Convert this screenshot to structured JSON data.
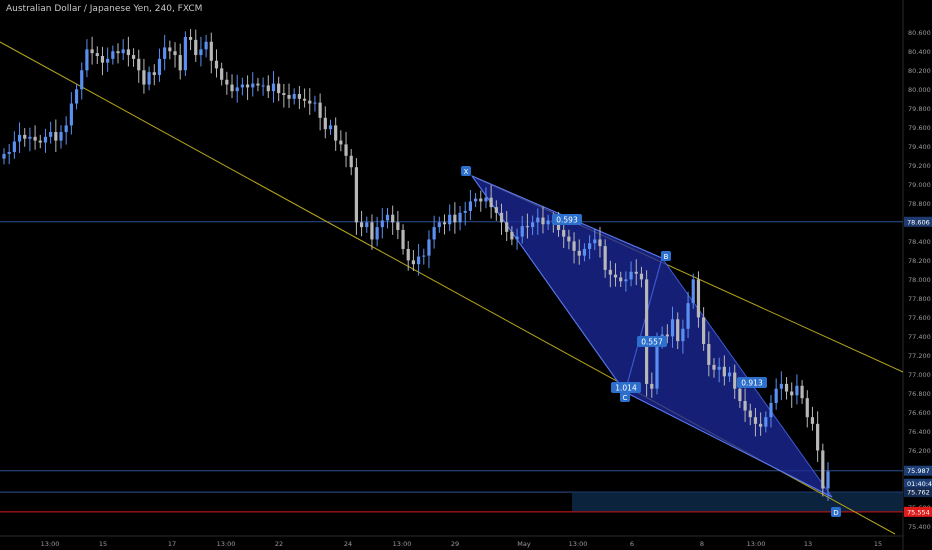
{
  "chart_data": {
    "type": "candlestick",
    "title": "Australian Dollar / Japanese Yen, 240, FXCM",
    "y_ticks": [
      80.6,
      80.4,
      80.2,
      80.0,
      79.8,
      79.6,
      79.4,
      79.2,
      79.0,
      78.8,
      78.4,
      78.2,
      78.0,
      77.8,
      77.6,
      77.4,
      77.2,
      77.0,
      76.8,
      76.6,
      76.4,
      76.2,
      75.6,
      75.4
    ],
    "x_ticks": [
      "13:00",
      "15",
      "17",
      "13:00",
      "22",
      "24",
      "13:00",
      "29",
      "May",
      "13:00",
      "6",
      "8",
      "13:00",
      "13",
      "15"
    ],
    "ylim": [
      75.3,
      80.75
    ],
    "grid": false,
    "price_labels": [
      {
        "value": 78.606,
        "text": "78.606",
        "color": "#1f3a6e"
      },
      {
        "value": 75.987,
        "text": "75.987",
        "color": "#1e3f75"
      },
      {
        "value": 75.85,
        "text": "01:40:42",
        "color": "#1e3f75"
      },
      {
        "value": 75.762,
        "text": "75.762",
        "color": "#162b52"
      },
      {
        "value": 75.554,
        "text": "75.554",
        "color": "#e01b1b"
      }
    ],
    "horizontal_lines": [
      {
        "value": 78.606,
        "color": "#2b4f8f"
      },
      {
        "value": 75.987,
        "color": "#2b4f8f"
      },
      {
        "value": 75.762,
        "color": "#2b4f8f"
      },
      {
        "value": 75.554,
        "color": "#e01b1b"
      }
    ],
    "pattern_points": [
      {
        "label": "X",
        "value": 78.93
      },
      {
        "label": "B",
        "value": 78.06
      },
      {
        "label": "C",
        "value": 76.68
      },
      {
        "label": "D",
        "value": 75.52
      }
    ],
    "ratio_labels": [
      "0.593",
      "0.557",
      "1.014",
      "0.913"
    ],
    "zone": {
      "low": 75.56,
      "high": 75.76
    },
    "closes": [
      79.32,
      79.34,
      79.45,
      79.52,
      79.48,
      79.5,
      79.46,
      79.44,
      79.5,
      79.55,
      79.46,
      79.55,
      79.62,
      79.85,
      80.0,
      80.2,
      80.42,
      80.38,
      80.35,
      80.28,
      80.32,
      80.4,
      80.38,
      80.42,
      80.36,
      80.32,
      80.2,
      80.05,
      80.18,
      80.15,
      80.32,
      80.44,
      80.4,
      80.36,
      80.2,
      80.55,
      80.52,
      80.36,
      80.42,
      80.5,
      80.3,
      80.22,
      80.1,
      80.05,
      79.98,
      80.02,
      80.05,
      80.02,
      80.06,
      80.04,
      80.04,
      79.98,
      80.06,
      79.96,
      79.94,
      79.9,
      79.95,
      79.9,
      79.88,
      79.85,
      79.86,
      79.7,
      79.58,
      79.62,
      79.46,
      79.42,
      79.3,
      79.18,
      78.6,
      78.55,
      78.6,
      78.42,
      78.55,
      78.62,
      78.68,
      78.6,
      78.52,
      78.32,
      78.2,
      78.16,
      78.24,
      78.25,
      78.42,
      78.55,
      78.6,
      78.58,
      78.68,
      78.6,
      78.7,
      78.72,
      78.82,
      78.85,
      78.82,
      78.86,
      78.76,
      78.7,
      78.6,
      78.5,
      78.42,
      78.45,
      78.56,
      78.55,
      78.6,
      78.65,
      78.58,
      78.62,
      78.6,
      78.52,
      78.45,
      78.4,
      78.3,
      78.25,
      78.32,
      78.38,
      78.42,
      78.35,
      78.1,
      78.05,
      78.02,
      77.98,
      78.0,
      78.08,
      78.06,
      78.0,
      76.9,
      76.85,
      77.38,
      77.42,
      77.4,
      77.58,
      77.35,
      77.48,
      77.75,
      78.0,
      77.6,
      77.32,
      77.1,
      77.05,
      77.08,
      76.98,
      77.02,
      76.85,
      76.72,
      76.62,
      76.55,
      76.48,
      76.45,
      76.55,
      76.7,
      76.85,
      76.9,
      76.82,
      76.78,
      76.88,
      76.75,
      76.55,
      76.48,
      76.2,
      75.8,
      75.98
    ]
  }
}
